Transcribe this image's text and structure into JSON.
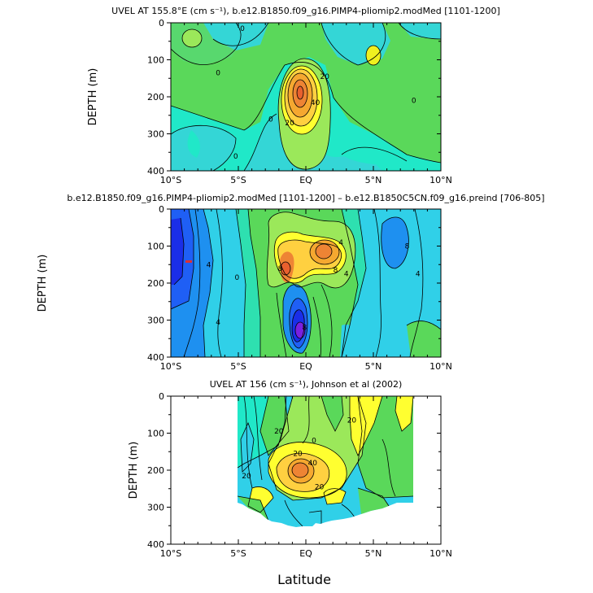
{
  "chart_data": [
    {
      "type": "contour",
      "title": "UVEL AT 155.8°E (cm s⁻¹), b.e12.B1850.f09_g16.PIMP4-pliomip2.modMed [1101-1200]",
      "ylabel": "DEPTH (m)",
      "xlabel": "",
      "xticks": [
        "10°S",
        "5°S",
        "EQ",
        "5°N",
        "10°N"
      ],
      "x_values": [
        -10,
        -5,
        0,
        5,
        10
      ],
      "yticks": [
        "0",
        "100",
        "200",
        "300",
        "400"
      ],
      "y_values": [
        0,
        100,
        200,
        300,
        400
      ],
      "xlim": [
        -10,
        10
      ],
      "ylim": [
        400,
        0
      ],
      "contour_labels": [
        {
          "text": "0",
          "x": -4.7,
          "y": 15
        },
        {
          "text": "0",
          "x": -6.5,
          "y": 135
        },
        {
          "text": "0",
          "x": -5.2,
          "y": 360
        },
        {
          "text": "20",
          "x": 1.4,
          "y": 145
        },
        {
          "text": "40",
          "x": 0.7,
          "y": 215
        },
        {
          "text": "20",
          "x": -1.2,
          "y": 270
        },
        {
          "text": "0",
          "x": 8.0,
          "y": 210
        },
        {
          "text": "0",
          "x": -2.6,
          "y": 260
        }
      ],
      "features": [
        {
          "kind": "jet-core",
          "x": -0.4,
          "y": 190,
          "peak": 50
        },
        {
          "kind": "max",
          "x": -8.1,
          "y": 45
        },
        {
          "kind": "max",
          "x": 5.1,
          "y": 90
        }
      ]
    },
    {
      "type": "contour",
      "title": "b.e12.B1850.f09_g16.PIMP4-pliomip2.modMed [1101-1200] – b.e12.B1850C5CN.f09_g16.preind [706-805]",
      "ylabel": "DEPTH (m)",
      "xlabel": "",
      "xticks": [
        "10°S",
        "5°S",
        "EQ",
        "5°N",
        "10°N"
      ],
      "x_values": [
        -10,
        -5,
        0,
        5,
        10
      ],
      "yticks": [
        "0",
        "100",
        "200",
        "300",
        "400"
      ],
      "y_values": [
        0,
        100,
        200,
        300,
        400
      ],
      "xlim": [
        -10,
        10
      ],
      "ylim": [
        400,
        0
      ],
      "contour_labels": [
        {
          "text": "4",
          "x": 2.6,
          "y": 90
        },
        {
          "text": "8",
          "x": 2.2,
          "y": 165
        },
        {
          "text": "8",
          "x": -1.9,
          "y": 160
        },
        {
          "text": "4",
          "x": -7.2,
          "y": 150
        },
        {
          "text": "0",
          "x": -5.1,
          "y": 185
        },
        {
          "text": "4",
          "x": -6.5,
          "y": 305
        },
        {
          "text": "8",
          "x": 7.5,
          "y": 100
        },
        {
          "text": "4",
          "x": 8.3,
          "y": 175
        },
        {
          "text": "4",
          "x": 3.0,
          "y": 175
        },
        {
          "text": "8",
          "x": -0.1,
          "y": 320
        }
      ],
      "features": [
        {
          "kind": "positive-max",
          "x": -1.4,
          "y": 175
        },
        {
          "kind": "positive-max",
          "x": 1.6,
          "y": 110
        },
        {
          "kind": "negative-min",
          "x": -0.1,
          "y": 325
        },
        {
          "kind": "negative-min",
          "x": -9.2,
          "y": 140
        },
        {
          "kind": "negative-min",
          "x": 6.9,
          "y": 110
        }
      ]
    },
    {
      "type": "contour",
      "title": "UVEL AT 156 (cm s⁻¹), Johnson et al (2002)",
      "ylabel": "DEPTH (m)",
      "xlabel": "Latitude",
      "xticks": [
        "10°S",
        "5°S",
        "EQ",
        "5°N",
        "10°N"
      ],
      "x_values": [
        -10,
        -5,
        0,
        5,
        10
      ],
      "yticks": [
        "0",
        "100",
        "200",
        "300",
        "400"
      ],
      "y_values": [
        0,
        100,
        200,
        300,
        400
      ],
      "xlim": [
        -10,
        10
      ],
      "ylim": [
        400,
        0
      ],
      "data_extent": {
        "lat": [
          -5.0,
          8.1
        ],
        "depth_max": 355
      },
      "contour_labels": [
        {
          "text": "20",
          "x": -2.0,
          "y": 95
        },
        {
          "text": "20",
          "x": 3.4,
          "y": 65
        },
        {
          "text": "20",
          "x": -0.6,
          "y": 155
        },
        {
          "text": "40",
          "x": 0.5,
          "y": 180
        },
        {
          "text": "20",
          "x": -4.4,
          "y": 215
        },
        {
          "text": "20",
          "x": 1.0,
          "y": 245
        },
        {
          "text": "0",
          "x": 0.6,
          "y": 120
        }
      ],
      "features": [
        {
          "kind": "jet-core",
          "x": -0.2,
          "y": 210,
          "peak": 50
        }
      ]
    }
  ]
}
